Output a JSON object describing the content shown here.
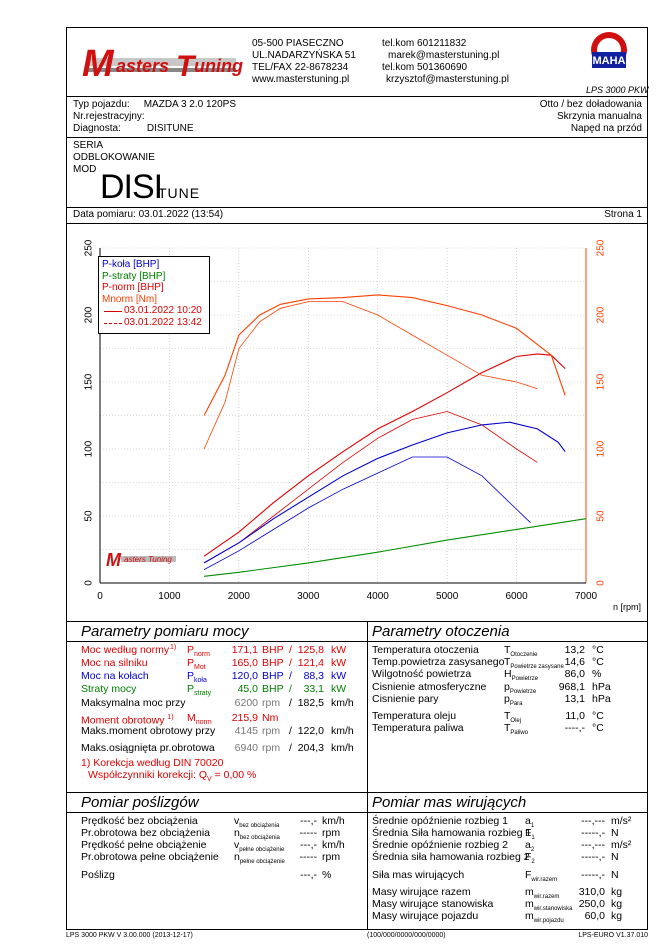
{
  "header": {
    "logo_text": "Masters Tuning",
    "address1": "05-500 PIASECZNO",
    "address2": "UL.NADARZYŃSKA 51",
    "telfax": "TEL/FAX 22-8678234",
    "website": "www.masterstuning.pl",
    "tel1": "tel.kom 601211832",
    "email1": "marek@masterstuning.pl",
    "tel2": "tel.kom 501360690",
    "email2": "krzysztof@masterstuning.pl",
    "maha_caption": "LPS 3000 PKW"
  },
  "vehicle": {
    "typ_label": "Typ pojazdu:",
    "typ_value": "MAZDA 3 2.0 120PS",
    "nr_label": "Nr.rejestracyjny:",
    "diag_label": "Diagnosta:",
    "diag_value": "DISITUNE",
    "charge": "Otto / bez doładowania",
    "gearbox": "Skrzynia manualna",
    "drive": "Napęd na przód"
  },
  "notes": {
    "line1": "SERIA",
    "line2": "ODBLOKOWANIE",
    "line3": "MOD",
    "tuner_logo": "DISI TUNE"
  },
  "measure": {
    "date_label": "Data pomiaru: 03.01.2022 (13:54)",
    "page_label": "Strona 1"
  },
  "chart_data": {
    "type": "line",
    "xlabel": "n [rpm]",
    "xlim": [
      0,
      7000
    ],
    "ylim": [
      0,
      250
    ],
    "x_ticks": [
      "0",
      "1000",
      "2000",
      "3000",
      "4000",
      "5000",
      "6000",
      "7000"
    ],
    "y_ticks": [
      "0",
      "50",
      "100",
      "150",
      "200",
      "250"
    ],
    "legend": [
      "P-koła [BHP]",
      "P-straty [BHP]",
      "P-norm [BHP]",
      "Mnorm [Nm]",
      "03.01.2022 10:20",
      "03.01.2022 13:42"
    ],
    "colors": {
      "wheel": "#0000cc",
      "loss": "#009000",
      "norm": "#e00000",
      "torque": "#ff4000"
    },
    "series": [
      {
        "name": "P-norm [BHP]",
        "run": "03.01.2022 13:42",
        "color": "#e00000",
        "x": [
          1500,
          2000,
          2500,
          3000,
          3500,
          4000,
          4500,
          5000,
          5500,
          6000,
          6300,
          6500,
          6700
        ],
        "values": [
          20,
          38,
          60,
          80,
          98,
          115,
          128,
          142,
          157,
          169,
          171,
          170,
          160
        ]
      },
      {
        "name": "P-norm [BHP]",
        "run": "03.01.2022 10:20",
        "color": "#e00000",
        "x": [
          1500,
          2000,
          2500,
          3000,
          3500,
          4000,
          4500,
          5000,
          5500,
          6000,
          6300
        ],
        "values": [
          15,
          30,
          50,
          70,
          90,
          108,
          122,
          128,
          118,
          100,
          90
        ]
      },
      {
        "name": "P-koła [BHP]",
        "run": "03.01.2022 13:42",
        "color": "#0000cc",
        "x": [
          1500,
          2000,
          2500,
          3000,
          3500,
          4000,
          4500,
          5000,
          5500,
          5900,
          6300,
          6600,
          6700
        ],
        "values": [
          15,
          30,
          48,
          64,
          80,
          93,
          103,
          112,
          118,
          120,
          115,
          105,
          98
        ]
      },
      {
        "name": "P-koła [BHP]",
        "run": "03.01.2022 10:20",
        "color": "#0000cc",
        "x": [
          1500,
          2000,
          2500,
          3000,
          3500,
          4000,
          4500,
          5000,
          5500,
          5900,
          6200
        ],
        "values": [
          10,
          24,
          40,
          56,
          70,
          82,
          94,
          94,
          80,
          60,
          45
        ]
      },
      {
        "name": "P-straty [BHP]",
        "color": "#009000",
        "x": [
          1500,
          2000,
          3000,
          4000,
          5000,
          6000,
          7000
        ],
        "values": [
          5,
          8,
          15,
          23,
          32,
          40,
          48
        ]
      },
      {
        "name": "Mnorm [Nm]",
        "run": "03.01.2022 13:42",
        "color": "#ff4000",
        "x": [
          1500,
          1800,
          2000,
          2300,
          2600,
          3000,
          3500,
          4000,
          4500,
          5000,
          5500,
          6000,
          6500,
          6700
        ],
        "values": [
          125,
          155,
          185,
          200,
          208,
          212,
          213,
          215,
          213,
          207,
          200,
          190,
          170,
          140
        ]
      },
      {
        "name": "Mnorm [Nm]",
        "run": "03.01.2022 10:20",
        "color": "#ff4000",
        "x": [
          1500,
          1800,
          2000,
          2300,
          2600,
          3000,
          3500,
          4000,
          4500,
          5000,
          5500,
          6000,
          6300
        ],
        "values": [
          100,
          135,
          175,
          195,
          205,
          210,
          210,
          200,
          185,
          170,
          155,
          150,
          145
        ]
      }
    ]
  },
  "power": {
    "title": "Parametry pomiaru mocy",
    "rows": [
      {
        "label": "Moc według normy",
        "sup": "1)",
        "sym": "P",
        "sub": "norm",
        "v1": "171,1",
        "u1": "BHP",
        "v2": "125,8",
        "u2": "kW",
        "color": "red"
      },
      {
        "label": "Moc na silniku",
        "sup": "",
        "sym": "P",
        "sub": "Mot",
        "v1": "165,0",
        "u1": "BHP",
        "v2": "121,4",
        "u2": "kW",
        "color": "red"
      },
      {
        "label": "Moc na kołach",
        "sup": "",
        "sym": "P",
        "sub": "koła",
        "v1": "120,0",
        "u1": "BHP",
        "v2": "88,3",
        "u2": "kW",
        "color": "blue"
      },
      {
        "label": "Straty mocy",
        "sup": "",
        "sym": "P",
        "sub": "straty",
        "v1": "45,0",
        "u1": "BHP",
        "v2": "33,1",
        "u2": "kW",
        "color": "green"
      }
    ],
    "maxmoc_label": "Maksymalna moc przy",
    "maxmoc_rpm": "6200",
    "maxmoc_speed": "182,5",
    "torque_label": "Moment obrotowy",
    "torque_sup": "1)",
    "torque_sym": "M",
    "torque_sub": "norm",
    "torque_value": "215,9",
    "torque_unit": "Nm",
    "maxmoment_label": "Maks.moment obrotowy przy",
    "maxmoment_rpm": "4145",
    "maxmoment_speed": "122,0",
    "maxrpm_label": "Maks.osiągnięta pr.obrotowa",
    "maxrpm_rpm": "6940",
    "maxrpm_speed": "204,3",
    "rpm_unit": "rpm",
    "speed_unit": "km/h",
    "corr1": "1) Korekcja według DIN 70020",
    "corr2": "Współczynniki korekcji: Q",
    "corr2_sub": "V",
    "corr2_val": " =   0,00 %"
  },
  "env": {
    "title": "Parametry otoczenia",
    "rows": [
      {
        "label": "Temperatura otoczenia",
        "sym": "T",
        "sub": "Otoczenie",
        "val": "13,2",
        "unit": "°C"
      },
      {
        "label": "Temp.powietrza zasysanego",
        "sym": "T",
        "sub": "Powietrze zasysane",
        "val": "14,6",
        "unit": "°C"
      },
      {
        "label": "Wilgotność powietrza",
        "sym": "H",
        "sub": "Powietrze",
        "val": "86,0",
        "unit": "%"
      },
      {
        "label": "Cisnienie atmosferyczne",
        "sym": "p",
        "sub": "Powietrze",
        "val": "968,1",
        "unit": "hPa"
      },
      {
        "label": "Cisnienie pary",
        "sym": "p",
        "sub": "Para",
        "val": "13,1",
        "unit": "hPa"
      },
      {
        "label": "Temperatura oleju",
        "sym": "T",
        "sub": "Olej",
        "val": "11,0",
        "unit": "°C"
      },
      {
        "label": "Temperatura paliwa",
        "sym": "T",
        "sub": "Paliwo",
        "val": "----,-",
        "unit": "°C"
      }
    ]
  },
  "slip": {
    "title": "Pomiar poślizgów",
    "rows": [
      {
        "label": "Prędkość bez obciążenia",
        "sym": "v",
        "sub": "bez obciążenia",
        "val": "---,-",
        "unit": "km/h"
      },
      {
        "label": "Pr.obrotowa bez obciążenia",
        "sym": "n",
        "sub": "bez obciążenia",
        "val": "-----",
        "unit": "rpm"
      },
      {
        "label": "Prędkość pełne obciążenie",
        "sym": "v",
        "sub": "pełne obciążenie",
        "val": "---,-",
        "unit": "km/h"
      },
      {
        "label": "Pr.obrotowa pełne obciążenie",
        "sym": "n",
        "sub": "pełne obciążenie",
        "val": "-----",
        "unit": "rpm"
      }
    ],
    "slip_label": "Poślizg",
    "slip_val": "---,-",
    "slip_unit": "%"
  },
  "mass": {
    "title": "Pomiar mas wirujących",
    "rows": [
      {
        "label": "Średnie opóźnienie rozbieg 1",
        "sym": "a",
        "sub": "1",
        "val": "---,---",
        "unit": "m/s²"
      },
      {
        "label": "Średnia Siła hamowania rozbieg 1",
        "sym": "F",
        "sub": "1",
        "val": "-----,-",
        "unit": "N"
      },
      {
        "label": "Średnie opóźnienie rozbieg 2",
        "sym": "a",
        "sub": "2",
        "val": "---,---",
        "unit": "m/s²"
      },
      {
        "label": "Średnia siła hamowania rozbieg 2",
        "sym": "F",
        "sub": "2",
        "val": "-----,-",
        "unit": "N"
      },
      {
        "label": "Siła mas wirujących",
        "sym": "F",
        "sub": "wir.razem",
        "val": "-----,-",
        "unit": "N"
      },
      {
        "label": "Masy wirujące razem",
        "sym": "m",
        "sub": "wir.razem",
        "val": "310,0",
        "unit": "kg"
      },
      {
        "label": "Masy wirujące stanowiska",
        "sym": "m",
        "sub": "wir.stanowiska",
        "val": "250,0",
        "unit": "kg"
      },
      {
        "label": "Masy wirujące pojazdu",
        "sym": "m",
        "sub": "wir.pojazdu",
        "val": "60,0",
        "unit": "kg"
      }
    ]
  },
  "footer": {
    "left": "LPS 3000 PKW V 3.00.000 (2013-12-17)",
    "center": "(100/000/0000/000/0000)",
    "right": "LPS-EURO V1.37.010"
  }
}
